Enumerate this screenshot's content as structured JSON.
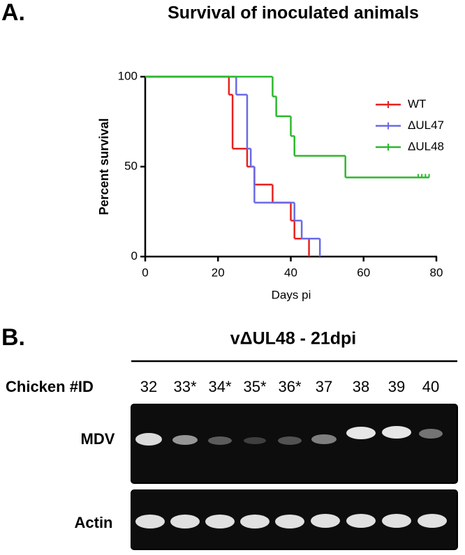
{
  "chart_data": {
    "type": "survival",
    "title": "Survival of inoculated animals",
    "xlabel": "Days pi",
    "ylabel": "Percent survival",
    "xlim": [
      0,
      80
    ],
    "ylim": [
      0,
      100
    ],
    "xticks": [
      0,
      20,
      40,
      60,
      80
    ],
    "yticks": [
      0,
      50,
      100
    ],
    "legend": "upper right",
    "series": [
      {
        "name": "WT",
        "color": "#e8211f",
        "x": [
          0,
          23,
          24,
          28,
          30,
          35,
          40,
          41,
          45
        ],
        "values": [
          100,
          90,
          60,
          50,
          40,
          30,
          20,
          10,
          0
        ],
        "censored": []
      },
      {
        "name": "ΔUL47",
        "color": "#6a6ae8",
        "x": [
          0,
          25,
          28,
          29,
          30,
          41,
          43,
          48
        ],
        "values": [
          100,
          90,
          60,
          50,
          30,
          20,
          10,
          0
        ],
        "censored": []
      },
      {
        "name": "ΔUL48",
        "color": "#2db82d",
        "x": [
          0,
          35,
          36,
          40,
          41,
          55,
          78
        ],
        "values": [
          100,
          89,
          78,
          67,
          56,
          44,
          44
        ],
        "censored": [
          75,
          76,
          77,
          78
        ]
      }
    ]
  },
  "panel_labels": [
    "A.",
    "B."
  ],
  "gel": {
    "title": "vΔUL48 - 21dpi",
    "id_label": "Chicken #ID",
    "lanes": [
      "32",
      "33*",
      "34*",
      "35*",
      "36*",
      "37",
      "38",
      "39",
      "40"
    ],
    "rows": [
      "MDV",
      "Actin"
    ]
  }
}
